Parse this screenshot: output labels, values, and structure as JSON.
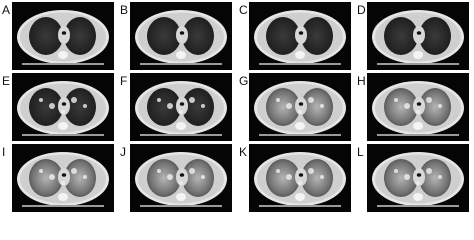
{
  "panels": [
    {
      "label": "A"
    },
    {
      "label": "B"
    },
    {
      "label": "C"
    },
    {
      "label": "D"
    },
    {
      "label": "E"
    },
    {
      "label": "F"
    },
    {
      "label": "G"
    },
    {
      "label": "H"
    },
    {
      "label": "I"
    },
    {
      "label": "J"
    },
    {
      "label": "K"
    },
    {
      "label": "L"
    }
  ]
}
